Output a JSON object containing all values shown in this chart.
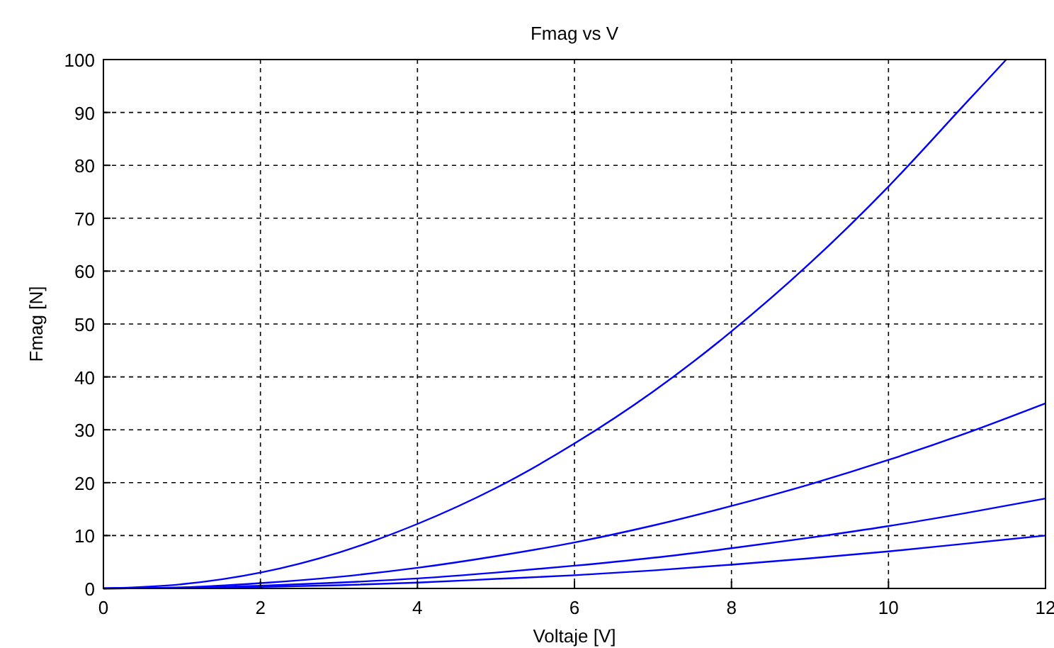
{
  "chart_data": {
    "type": "line",
    "title": "Fmag vs V",
    "xlabel": "Voltaje [V]",
    "ylabel": "Fmag [N]",
    "series": [
      {
        "color": "#0000ff",
        "x": [
          0,
          1,
          2,
          3,
          4,
          5,
          6,
          7,
          8,
          9,
          10,
          11,
          11.5
        ],
        "values": [
          0,
          0.8,
          3,
          6.8,
          12.2,
          19,
          27.4,
          37.2,
          48.6,
          61.5,
          76,
          92,
          100
        ]
      },
      {
        "color": "#0000ff",
        "x": [
          0,
          1,
          2,
          3,
          4,
          5,
          6,
          7,
          8,
          9,
          10,
          11,
          12
        ],
        "values": [
          0,
          0.2,
          1,
          2.2,
          3.9,
          6.1,
          8.7,
          11.9,
          15.6,
          19.7,
          24.3,
          29.4,
          35
        ]
      },
      {
        "color": "#0000ff",
        "x": [
          0,
          1,
          2,
          3,
          4,
          5,
          6,
          7,
          8,
          9,
          10,
          11,
          12
        ],
        "values": [
          0,
          0.1,
          0.5,
          1.1,
          1.9,
          3,
          4.3,
          5.8,
          7.6,
          9.6,
          11.8,
          14.3,
          17
        ]
      },
      {
        "color": "#0000ff",
        "x": [
          0,
          1,
          2,
          3,
          4,
          5,
          6,
          7,
          8,
          9,
          10,
          11,
          12
        ],
        "values": [
          0,
          0.1,
          0.3,
          0.6,
          1.1,
          1.8,
          2.5,
          3.4,
          4.5,
          5.7,
          7,
          8.5,
          10
        ]
      }
    ],
    "xlim": [
      0,
      12
    ],
    "xticks": [
      0,
      2,
      4,
      6,
      8,
      10,
      12
    ],
    "ylim": [
      0,
      100
    ],
    "yticks": [
      0,
      10,
      20,
      30,
      40,
      50,
      60,
      70,
      80,
      90,
      100
    ],
    "grid": true,
    "marker": "none",
    "line_style": "solid"
  }
}
